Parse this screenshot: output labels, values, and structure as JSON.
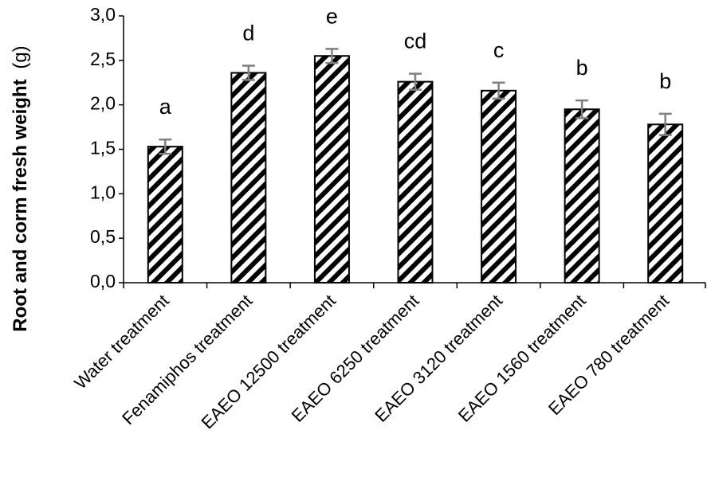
{
  "chart_data": {
    "type": "bar",
    "title": "",
    "xlabel": "",
    "ylabel": {
      "text": "Root and corm fresh weight",
      "unit": "(g)"
    },
    "ylim": [
      0,
      3.0
    ],
    "yticks": [
      "0,0",
      "0,5",
      "1,0",
      "1,5",
      "2,0",
      "2,5",
      "3,0"
    ],
    "grid": false,
    "legend": "none",
    "bar_style": "diagonal black/white stripes with black outline",
    "categories": [
      "Water treatment",
      "Fenamiphos treatment",
      "EAEO 12500 treatment",
      "EAEO 6250 treatment",
      "EAEO 3120 treatment",
      "EAEO 1560 treatment",
      "EAEO 780 treatment"
    ],
    "values": [
      1.53,
      2.36,
      2.55,
      2.26,
      2.16,
      1.95,
      1.78
    ],
    "errors": [
      0.08,
      0.08,
      0.08,
      0.09,
      0.09,
      0.1,
      0.12
    ],
    "significance_letters": [
      "a",
      "d",
      "e",
      "cd",
      "c",
      "b",
      "b"
    ],
    "colors": {
      "bar_stripe": "#000000",
      "bar_fill": "#ffffff",
      "error_bar": "#7f7f7f",
      "axis": "#000000"
    }
  }
}
